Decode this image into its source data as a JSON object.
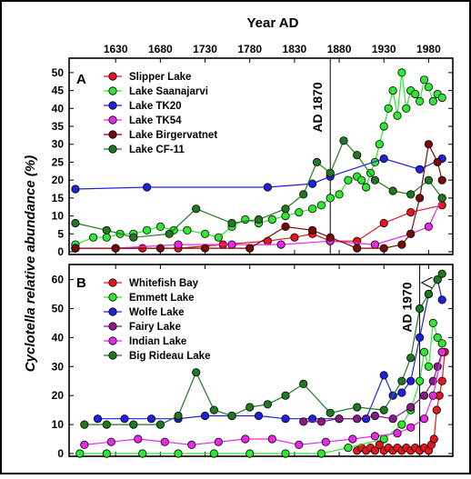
{
  "chart_data": {
    "type": "line",
    "x_axis_title": "Year AD",
    "y_axis_title": "Cyclotella relative abundance (%)",
    "x_ticks": [
      1630,
      1680,
      1730,
      1780,
      1830,
      1880,
      1930,
      1980
    ],
    "xlim": [
      1580,
      2005
    ],
    "panels": [
      {
        "label": "A",
        "ylim": [
          0,
          52
        ],
        "y_ticks": [
          0,
          5,
          10,
          15,
          20,
          25,
          30,
          35,
          40,
          45,
          50
        ],
        "annotation": {
          "text": "AD 1870",
          "x": 1870
        },
        "series": [
          {
            "name": "Slipper Lake",
            "color": "#e8141e",
            "x": [
              1585,
              1660,
              1700,
              1750,
              1800,
              1830,
              1850,
              1870,
              1900,
              1930,
              1960,
              1995
            ],
            "y": [
              1,
              1,
              1,
              2,
              3,
              4,
              5,
              3,
              3,
              8,
              11,
              13
            ]
          },
          {
            "name": "Lake Saanajarvi",
            "color": "#2ee832",
            "x": [
              1585,
              1605,
              1620,
              1635,
              1650,
              1665,
              1680,
              1695,
              1710,
              1730,
              1745,
              1760,
              1775,
              1790,
              1805,
              1820,
              1835,
              1850,
              1860,
              1870,
              1880,
              1890,
              1900,
              1905,
              1910,
              1915,
              1920,
              1925,
              1930,
              1935,
              1940,
              1945,
              1950,
              1955,
              1960,
              1965,
              1970,
              1975,
              1980,
              1985,
              1990,
              1995
            ],
            "y": [
              2,
              4,
              4,
              5,
              5,
              6,
              7,
              6,
              6,
              5,
              4,
              7,
              9,
              8,
              9,
              10,
              11,
              12,
              13,
              15,
              16,
              20,
              21,
              20,
              18,
              22,
              25,
              30,
              35,
              40,
              45,
              38,
              50,
              40,
              45,
              44,
              42,
              48,
              46,
              42,
              44,
              43
            ]
          },
          {
            "name": "Lake TK20",
            "color": "#2020e0",
            "x": [
              1585,
              1665,
              1800,
              1850,
              1870,
              1930,
              1970,
              1995
            ],
            "y": [
              17.5,
              18,
              18,
              19,
              21,
              26,
              23,
              26
            ]
          },
          {
            "name": "Lake TK54",
            "color": "#ea28ea",
            "x": [
              1585,
              1630,
              1700,
              1760,
              1815,
              1870,
              1920,
              1960,
              1980,
              1995
            ],
            "y": [
              1,
              1,
              2,
              2,
              2,
              3,
              2,
              5,
              7,
              15
            ]
          },
          {
            "name": "Lake Birgervatnet",
            "color": "#7a0a0a",
            "x": [
              1585,
              1630,
              1680,
              1730,
              1780,
              1820,
              1850,
              1870,
              1900,
              1930,
              1950,
              1960,
              1970,
              1980,
              1990,
              1995
            ],
            "y": [
              1,
              1,
              1,
              1,
              1,
              7,
              6,
              4,
              1,
              1,
              2,
              5,
              15,
              30,
              25,
              20
            ]
          },
          {
            "name": "Lake CF-11",
            "color": "#1f7a1f",
            "x": [
              1585,
              1620,
              1650,
              1690,
              1720,
              1760,
              1790,
              1820,
              1840,
              1855,
              1870,
              1885,
              1900,
              1920,
              1940,
              1960,
              1980,
              1995
            ],
            "y": [
              8,
              6,
              4,
              5,
              12,
              8,
              9,
              12,
              16,
              25,
              22,
              31,
              27,
              20,
              17,
              16,
              20,
              15
            ]
          }
        ]
      },
      {
        "label": "B",
        "ylim": [
          0,
          63
        ],
        "y_ticks": [
          0,
          10,
          20,
          30,
          40,
          50,
          60
        ],
        "annotation": {
          "text": "AD 1970",
          "x": 1970
        },
        "series": [
          {
            "name": "Whitefish Bay",
            "color": "#e8141e",
            "x": [
              1900,
              1905,
              1910,
              1915,
              1920,
              1925,
              1930,
              1935,
              1940,
              1945,
              1950,
              1955,
              1960,
              1965,
              1970,
              1975,
              1980,
              1983,
              1986,
              1989,
              1992,
              1995,
              1998
            ],
            "y": [
              1,
              2,
              1,
              2,
              1,
              3,
              1,
              2,
              1,
              2,
              1,
              2,
              1,
              2,
              1,
              2,
              1,
              3,
              5,
              15,
              20,
              25,
              35
            ]
          },
          {
            "name": "Emmett Lake",
            "color": "#2ee832",
            "x": [
              1590,
              1620,
              1660,
              1700,
              1740,
              1780,
              1820,
              1860,
              1890,
              1930,
              1950,
              1960,
              1970,
              1975,
              1980,
              1985,
              1990,
              1995
            ],
            "y": [
              0,
              0,
              0,
              0,
              0,
              0,
              0,
              0,
              2,
              5,
              10,
              15,
              25,
              35,
              30,
              45,
              40,
              38
            ]
          },
          {
            "name": "Wolfe Lake",
            "color": "#2020e0",
            "x": [
              1610,
              1640,
              1670,
              1700,
              1730,
              1760,
              1790,
              1820,
              1850,
              1880,
              1910,
              1930,
              1940,
              1950,
              1960,
              1970,
              1980,
              1990,
              1995
            ],
            "y": [
              12,
              12,
              12,
              12,
              13,
              13,
              13,
              12,
              12,
              12,
              12,
              27,
              20,
              21,
              25,
              40,
              55,
              60,
              53
            ]
          },
          {
            "name": "Fairy Lake",
            "color": "#8a1a8a",
            "x": [
              1840,
              1860,
              1880,
              1900,
              1920,
              1940,
              1960,
              1975,
              1985,
              1990,
              1995
            ],
            "y": [
              11,
              11,
              12,
              12,
              13,
              12,
              16,
              20,
              25,
              30,
              35
            ]
          },
          {
            "name": "Indian Lake",
            "color": "#ea28ea",
            "x": [
              1595,
              1625,
              1655,
              1685,
              1715,
              1745,
              1775,
              1805,
              1835,
              1865,
              1895,
              1920,
              1945,
              1960,
              1975,
              1985,
              1995
            ],
            "y": [
              3,
              4,
              5,
              4,
              3,
              4,
              5,
              5,
              3,
              4,
              5,
              6,
              7,
              9,
              12,
              20,
              35
            ]
          },
          {
            "name": "Big Rideau Lake",
            "color": "#1f7a1f",
            "x": [
              1595,
              1620,
              1650,
              1680,
              1700,
              1720,
              1740,
              1760,
              1780,
              1800,
              1820,
              1840,
              1870,
              1900,
              1930,
              1950,
              1960,
              1970,
              1980,
              1990,
              1995
            ],
            "y": [
              10,
              10,
              10,
              10,
              13,
              28,
              15,
              13,
              16,
              17,
              20,
              24,
              14,
              16,
              15,
              25,
              33,
              50,
              55,
              60,
              62
            ]
          }
        ]
      }
    ]
  }
}
